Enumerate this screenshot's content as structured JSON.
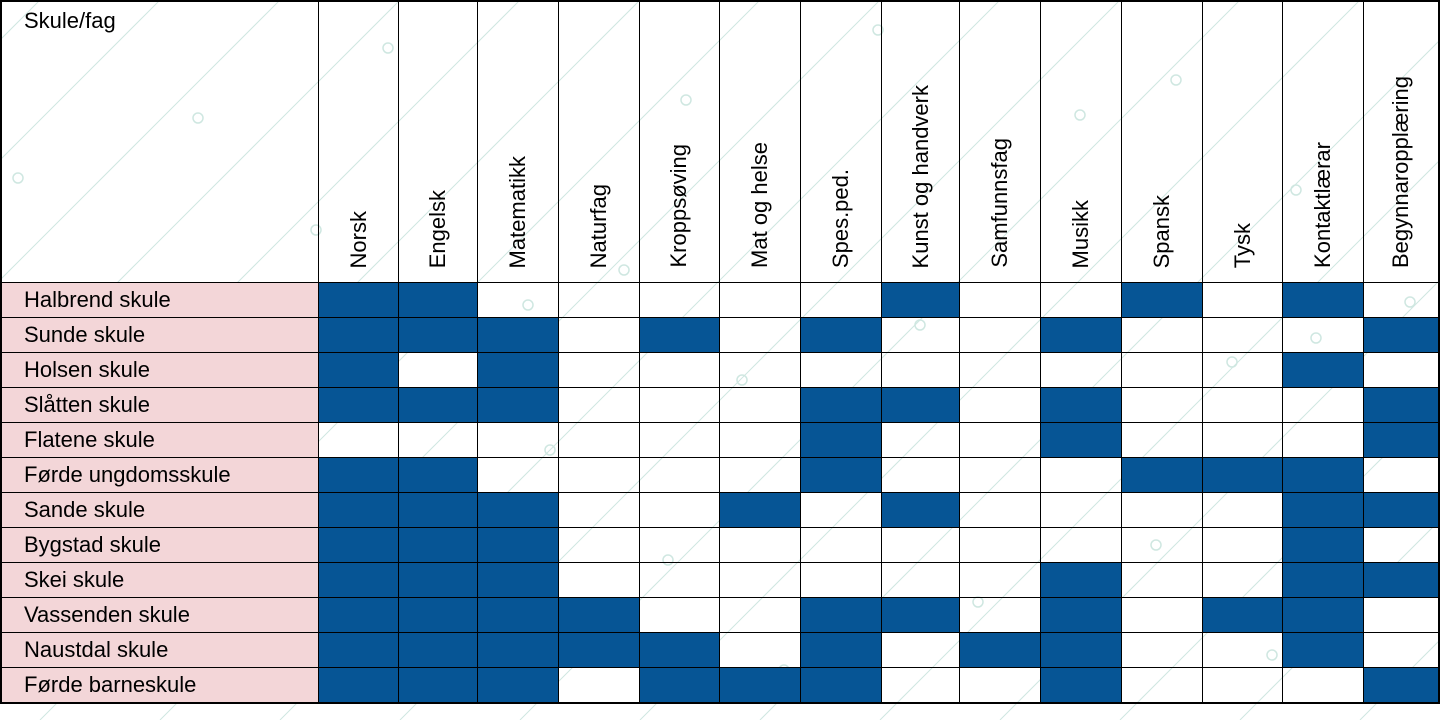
{
  "table": {
    "corner_label": "Skule/fag",
    "subjects": [
      "Norsk",
      "Engelsk",
      "Matematikk",
      "Naturfag",
      "Kroppsøving",
      "Mat og helse",
      "Spes.ped.",
      "Kunst og handverk",
      "Samfunnsfag",
      "Musikk",
      "Spansk",
      "Tysk",
      "Kontaktlærar",
      "Begynnaropplæring"
    ],
    "rows": [
      {
        "school": "Halbrend skule",
        "marks": [
          1,
          1,
          0,
          0,
          0,
          0,
          0,
          1,
          0,
          0,
          1,
          0,
          1,
          0
        ]
      },
      {
        "school": "Sunde skule",
        "marks": [
          1,
          1,
          1,
          0,
          1,
          0,
          1,
          0,
          0,
          1,
          0,
          0,
          0,
          1
        ]
      },
      {
        "school": "Holsen skule",
        "marks": [
          1,
          0,
          1,
          0,
          0,
          0,
          0,
          0,
          0,
          0,
          0,
          0,
          1,
          0
        ]
      },
      {
        "school": "Slåtten skule",
        "marks": [
          1,
          1,
          1,
          0,
          0,
          0,
          1,
          1,
          0,
          1,
          0,
          0,
          0,
          1
        ]
      },
      {
        "school": "Flatene skule",
        "marks": [
          0,
          0,
          0,
          0,
          0,
          0,
          1,
          0,
          0,
          1,
          0,
          0,
          0,
          1
        ]
      },
      {
        "school": "Førde ungdomsskule",
        "marks": [
          1,
          1,
          0,
          0,
          0,
          0,
          1,
          0,
          0,
          0,
          1,
          1,
          1,
          0
        ]
      },
      {
        "school": "Sande skule",
        "marks": [
          1,
          1,
          1,
          0,
          0,
          1,
          0,
          1,
          0,
          0,
          0,
          0,
          1,
          1
        ]
      },
      {
        "school": "Bygstad skule",
        "marks": [
          1,
          1,
          1,
          0,
          0,
          0,
          0,
          0,
          0,
          0,
          0,
          0,
          1,
          0
        ]
      },
      {
        "school": "Skei skule",
        "marks": [
          1,
          1,
          1,
          0,
          0,
          0,
          0,
          0,
          0,
          1,
          0,
          0,
          1,
          1
        ]
      },
      {
        "school": "Vassenden skule",
        "marks": [
          1,
          1,
          1,
          1,
          0,
          0,
          1,
          1,
          0,
          1,
          0,
          1,
          1,
          0
        ]
      },
      {
        "school": "Naustdal skule",
        "marks": [
          1,
          1,
          1,
          1,
          1,
          0,
          1,
          0,
          1,
          1,
          0,
          0,
          1,
          0
        ]
      },
      {
        "school": "Førde barneskule",
        "marks": [
          1,
          1,
          1,
          0,
          1,
          1,
          1,
          0,
          0,
          1,
          0,
          0,
          0,
          1
        ]
      }
    ]
  },
  "colors": {
    "filled": "#065595",
    "school_bg": "#f3d6d8",
    "watermark": "#cfe7e1"
  }
}
